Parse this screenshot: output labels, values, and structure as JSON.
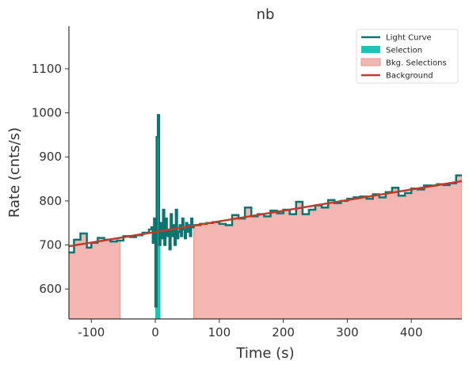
{
  "chart_data": {
    "type": "light_curve",
    "title": "nb",
    "x_label": "Time (s)",
    "y_label": "Rate (cnts/s)",
    "xlim": [
      -135,
      479
    ],
    "ylim": [
      532,
      1197
    ],
    "xticks": [
      -100,
      0,
      100,
      200,
      300,
      400
    ],
    "yticks": [
      600,
      700,
      800,
      900,
      1000,
      1100
    ],
    "legend_position": "upper right",
    "series": [
      {
        "name": "Light Curve",
        "color": "#0d7470",
        "x": [
          -135,
          -127,
          -117,
          -107,
          -100,
          -90,
          -80,
          -70,
          -60,
          -50,
          -40,
          -30,
          -20,
          -10,
          -6,
          -4,
          -2,
          0,
          2,
          4,
          6,
          8,
          10,
          12,
          14,
          16,
          18,
          20,
          22,
          24,
          26,
          28,
          30,
          32,
          34,
          36,
          38,
          40,
          42,
          44,
          46,
          48,
          50,
          52,
          54,
          56,
          58,
          60,
          70,
          80,
          90,
          100,
          110,
          120,
          130,
          140,
          150,
          160,
          170,
          180,
          190,
          200,
          210,
          220,
          230,
          240,
          250,
          260,
          270,
          280,
          290,
          300,
          310,
          320,
          330,
          340,
          350,
          360,
          370,
          380,
          390,
          400,
          410,
          420,
          430,
          440,
          450,
          460,
          470
        ],
        "values": [
          683,
          712,
          726,
          694,
          705,
          716,
          712,
          708,
          710,
          720,
          718,
          722,
          728,
          735,
          740,
          705,
          760,
          560,
          945,
          995,
          700,
          750,
          715,
          780,
          700,
          760,
          720,
          735,
          690,
          770,
          720,
          745,
          700,
          780,
          715,
          730,
          745,
          720,
          760,
          735,
          715,
          750,
          730,
          745,
          720,
          760,
          740,
          745,
          748,
          750,
          752,
          748,
          745,
          768,
          760,
          785,
          765,
          770,
          765,
          778,
          772,
          780,
          770,
          798,
          770,
          780,
          790,
          785,
          802,
          795,
          800,
          805,
          808,
          810,
          805,
          815,
          808,
          820,
          830,
          812,
          818,
          828,
          826,
          835,
          835,
          838,
          836,
          840,
          858
        ]
      },
      {
        "name": "Selection",
        "color": "#1fc2b5",
        "range": [
          0,
          8
        ]
      },
      {
        "name": "Bkg. Selections",
        "color": "#f4b6b0",
        "edge_color": "#e9988f",
        "ranges": [
          [
            -135,
            -55
          ],
          [
            60,
            479
          ]
        ]
      },
      {
        "name": "Background",
        "color": "#bd3c2c",
        "x": [
          -135,
          479
        ],
        "values": [
          697,
          845
        ]
      }
    ]
  }
}
